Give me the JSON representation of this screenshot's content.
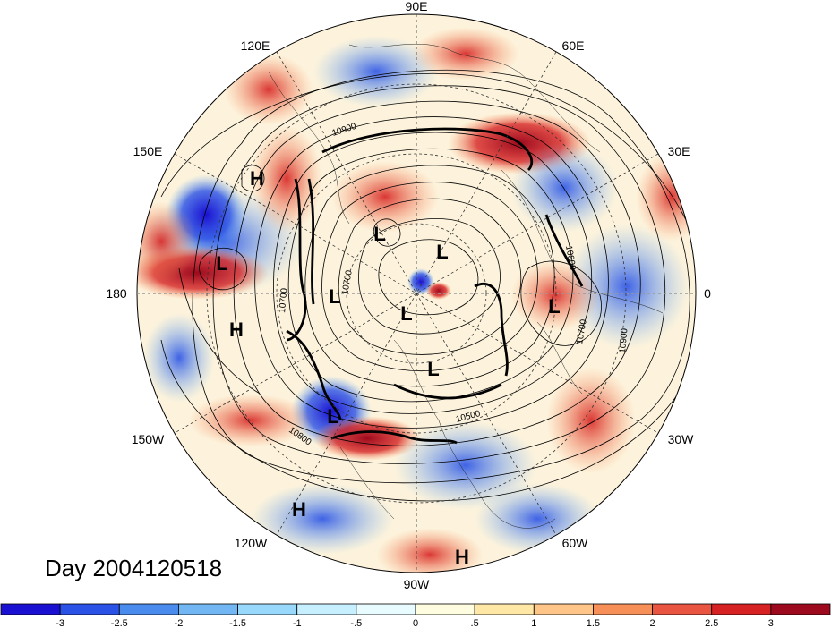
{
  "title": "Day 2004120518",
  "longitude_labels": [
    "90E",
    "120E",
    "60E",
    "150E",
    "30E",
    "180",
    "0",
    "150W",
    "30W",
    "120W",
    "60W",
    "90W"
  ],
  "centers": [
    {
      "t": "H",
      "name": "high"
    },
    {
      "t": "L",
      "name": "low"
    },
    {
      "t": "L",
      "name": "low"
    },
    {
      "t": "L",
      "name": "low"
    },
    {
      "t": "L",
      "name": "low"
    },
    {
      "t": "L",
      "name": "low"
    },
    {
      "t": "L",
      "name": "low"
    },
    {
      "t": "L",
      "name": "low"
    },
    {
      "t": "H",
      "name": "high"
    },
    {
      "t": "L",
      "name": "low"
    },
    {
      "t": "H",
      "name": "high"
    },
    {
      "t": "H",
      "name": "high"
    }
  ],
  "contour_labels": [
    "10900",
    "10800",
    "10700",
    "10700",
    "10900",
    "10500",
    "10800",
    "10700"
  ],
  "colorbar": {
    "ticks": [
      "-3",
      "-2.5",
      "-2",
      "-1.5",
      "-1",
      "-.5",
      "0",
      ".5",
      "1",
      "1.5",
      "2",
      "2.5",
      "3"
    ],
    "colors": [
      "#1a10d2",
      "#2a52e6",
      "#4a8ced",
      "#72b6f3",
      "#98d8fa",
      "#c6f0ff",
      "#e8fbff",
      "#fffde0",
      "#ffe8a6",
      "#fdc587",
      "#f79058",
      "#e95541",
      "#d62222",
      "#9d0a1d"
    ]
  }
}
